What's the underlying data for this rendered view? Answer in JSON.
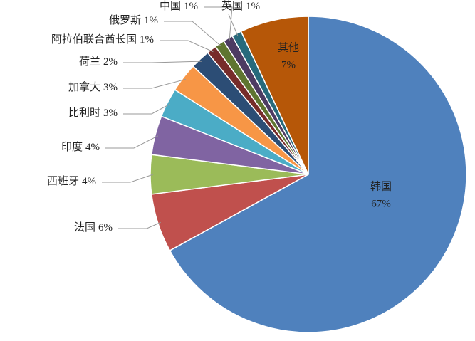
{
  "chart_data": {
    "type": "pie",
    "categories": [
      "韩国",
      "法国",
      "西班牙",
      "印度",
      "比利时",
      "加拿大",
      "荷兰",
      "阿拉伯联合酋长国",
      "俄罗斯",
      "中国",
      "英国",
      "其他"
    ],
    "values": [
      67,
      6,
      4,
      4,
      3,
      3,
      2,
      1,
      1,
      1,
      1,
      7
    ],
    "value_labels": [
      "67%",
      "6%",
      "4%",
      "4%",
      "3%",
      "3%",
      "2%",
      "1%",
      "1%",
      "1%",
      "1%",
      "7%"
    ],
    "colors": [
      "#4f81bd",
      "#c0504d",
      "#9bbb59",
      "#8064a2",
      "#4bacc6",
      "#f79646",
      "#2c4d75",
      "#772c2a",
      "#5f7530",
      "#4d3b62",
      "#276a7c",
      "#b65708"
    ]
  }
}
